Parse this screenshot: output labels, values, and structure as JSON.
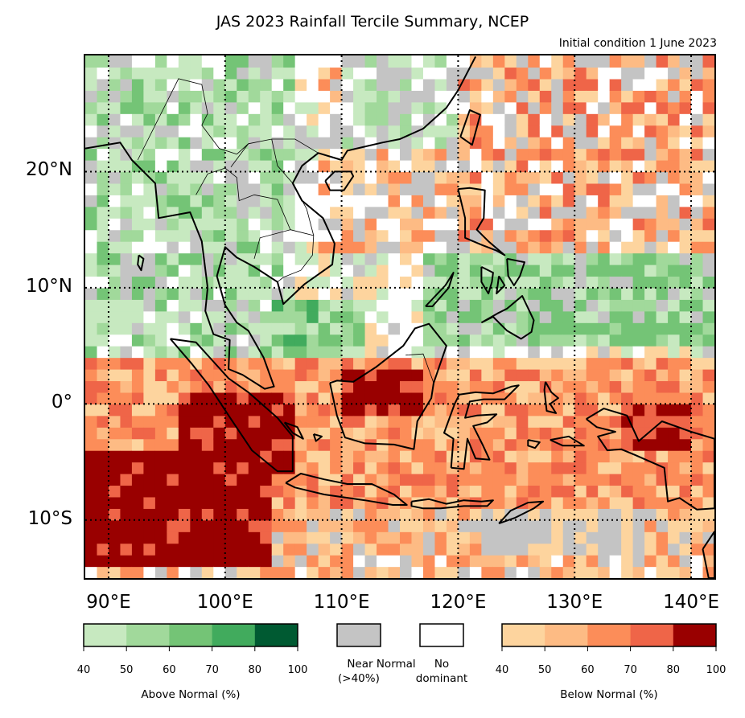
{
  "title": "JAS 2023 Rainfall Tercile Summary, NCEP",
  "subtitle": "Initial condition 1 June 2023",
  "map": {
    "lon_range": [
      88,
      142
    ],
    "lat_range": [
      -15,
      30
    ],
    "lat_labels": [
      {
        "lat": 20,
        "text": "20°N"
      },
      {
        "lat": 10,
        "text": "10°N"
      },
      {
        "lat": 0,
        "text": "0°"
      },
      {
        "lat": -10,
        "text": "10°S"
      }
    ],
    "lon_labels": [
      {
        "lon": 90,
        "text": "90°E"
      },
      {
        "lon": 100,
        "text": "100°E"
      },
      {
        "lon": 110,
        "text": "110°E"
      },
      {
        "lon": 120,
        "text": "120°E"
      },
      {
        "lon": 130,
        "text": "130°E"
      },
      {
        "lon": 140,
        "text": "140°E"
      }
    ],
    "gridlines": "dotted"
  },
  "legend": {
    "above": {
      "title": "Above Normal (%)",
      "colors": [
        "#c7e9c0",
        "#a1d99b",
        "#74c476",
        "#41ab5d",
        "#005a32"
      ],
      "ticks": [
        "40",
        "50",
        "60",
        "70",
        "80",
        "100"
      ]
    },
    "near_normal": {
      "label_1": "Near Normal",
      "label_2": "(>40%)",
      "color": "#c4c4c4"
    },
    "no_dominant": {
      "label_1": "No",
      "label_2": "dominant",
      "color": "#ffffff"
    },
    "below": {
      "title": "Below Normal (%)",
      "colors": [
        "#fdd49e",
        "#fdbb84",
        "#fc8d59",
        "#ef6548",
        "#990000"
      ],
      "ticks": [
        "40",
        "50",
        "60",
        "70",
        "80",
        "100"
      ]
    }
  }
}
